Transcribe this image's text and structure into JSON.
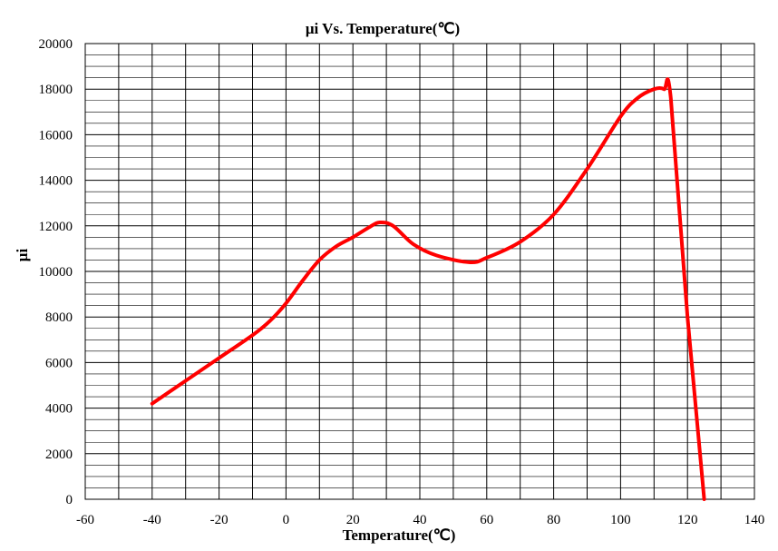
{
  "chart_data": {
    "type": "line",
    "title": "μi Vs. Temperature(℃)",
    "xlabel": "Temperature(℃)",
    "ylabel": "μi",
    "xlim": [
      -60,
      140
    ],
    "ylim": [
      0,
      20000
    ],
    "x_ticks": [
      "-60",
      "-40",
      "-20",
      "0",
      "20",
      "40",
      "60",
      "80",
      "100",
      "120",
      "140"
    ],
    "y_ticks": [
      "0",
      "2000",
      "4000",
      "6000",
      "8000",
      "10000",
      "12000",
      "14000",
      "16000",
      "18000",
      "20000"
    ],
    "grid": true,
    "legend": "none",
    "series": [
      {
        "color": "#ff0000",
        "x": [
          -40,
          -30,
          -20,
          -10,
          -5,
          0,
          5,
          10,
          15,
          20,
          25,
          28,
          32,
          38,
          45,
          55,
          60,
          70,
          80,
          90,
          100,
          105,
          110,
          113,
          115,
          120,
          125
        ],
        "y": [
          4200,
          5200,
          6200,
          7200,
          7800,
          8600,
          9600,
          10500,
          11100,
          11500,
          11950,
          12150,
          12000,
          11200,
          10700,
          10400,
          10600,
          11300,
          12500,
          14500,
          16800,
          17600,
          18000,
          18000,
          17600,
          8000,
          0
        ]
      }
    ]
  }
}
